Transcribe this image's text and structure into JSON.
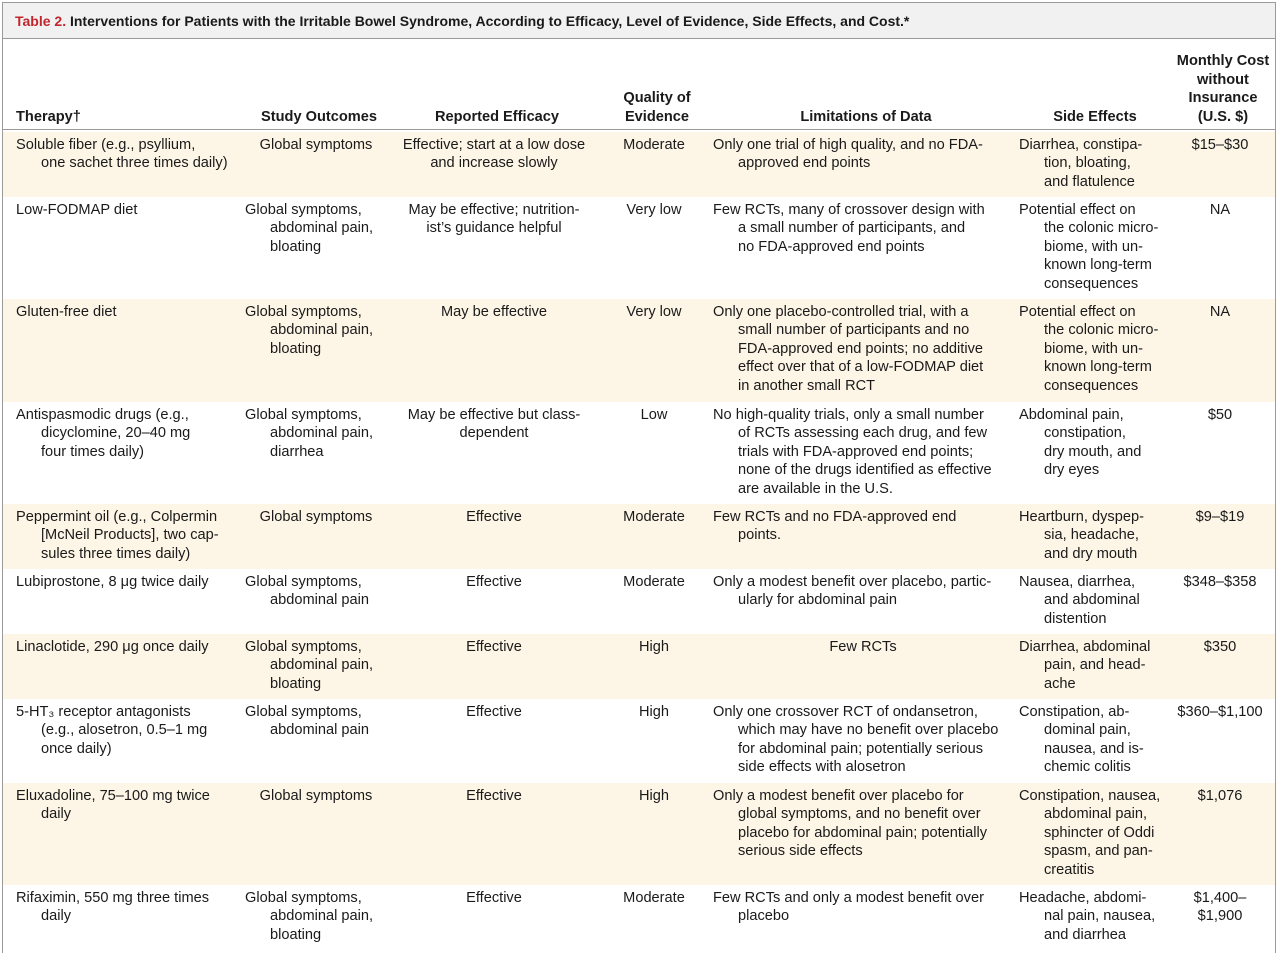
{
  "title": {
    "label": "Table 2.",
    "text": "Interventions for Patients with the Irritable Bowel Syndrome, According to Efficacy, Level of Evidence, Side Effects, and Cost.*"
  },
  "table": {
    "headers": [
      "Therapy†",
      "Study Outcomes",
      "Reported Efficacy",
      "Quality of\nEvidence",
      "Limitations of Data",
      "Side Effects",
      "Monthly Cost\nwithout\nInsurance\n(U.S. $)"
    ],
    "rows": [
      [
        "Soluble fiber (e.g., psyllium,\none sachet three times daily)",
        "Global symptoms",
        "Effective; start at a low dose\nand increase slowly",
        "Moderate",
        "Only one trial of high quality, and no FDA-\napproved end points",
        "Diarrhea, constipa-\ntion, bloating,\nand flatulence",
        "$15–$30"
      ],
      [
        "Low-FODMAP diet",
        "Global symptoms,\nabdominal pain,\nbloating",
        "May be effective; nutrition-\nist’s guidance helpful",
        "Very low",
        "Few RCTs, many of crossover design with\na small number of participants, and\nno FDA-approved end points",
        "Potential effect on\nthe colonic micro-\nbiome, with un-\nknown long-term\nconsequences",
        "NA"
      ],
      [
        "Gluten-free diet",
        "Global symptoms,\nabdominal pain,\nbloating",
        "May be effective",
        "Very low",
        "Only one placebo-controlled trial, with a\nsmall number of participants and no\nFDA-approved end points; no additive\neffect over that of a low-FODMAP diet\nin another small RCT",
        "Potential effect on\nthe colonic micro-\nbiome, with un-\nknown long-term\nconsequences",
        "NA"
      ],
      [
        "Antispasmodic drugs (e.g.,\ndicyclomine, 20–40 mg\nfour times daily)",
        "Global symptoms,\nabdominal pain,\ndiarrhea",
        "May be effective but class-\ndependent",
        "Low",
        "No high-quality trials, only a small number\nof RCTs assessing each drug, and few\ntrials with FDA-approved end points;\nnone of the drugs identified as effective\nare available in the U.S.",
        "Abdominal pain,\nconstipation,\ndry mouth, and\ndry eyes",
        "$50"
      ],
      [
        "Peppermint oil (e.g., Colpermin\n[McNeil Products], two cap-\nsules three times daily)",
        "Global symptoms",
        "Effective",
        "Moderate",
        "Few RCTs and no FDA-approved end\npoints.",
        "Heartburn, dyspep-\nsia, headache,\nand dry mouth",
        "$9–$19"
      ],
      [
        "Lubiprostone, 8 μg twice daily",
        "Global symptoms,\nabdominal pain",
        "Effective",
        "Moderate",
        "Only a modest benefit over placebo, partic-\nularly for abdominal pain",
        "Nausea, diarrhea,\nand abdominal\ndistention",
        "$348–$358"
      ],
      [
        "Linaclotide, 290 μg once daily",
        "Global symptoms,\nabdominal pain,\nbloating",
        "Effective",
        "High",
        "Few RCTs",
        "Diarrhea, abdominal\npain, and head-\nache",
        "$350"
      ],
      [
        "5-HT₃ receptor antagonists\n(e.g., alosetron, 0.5–1 mg\nonce daily)",
        "Global symptoms,\nabdominal pain",
        "Effective",
        "High",
        "Only one crossover RCT of ondansetron,\nwhich may have no benefit over placebo\nfor abdominal pain; potentially serious\nside effects with alosetron",
        "Constipation, ab-\ndominal pain,\nnausea, and is-\nchemic colitis",
        "$360–$1,100"
      ],
      [
        "Eluxadoline, 75–100 mg twice\ndaily",
        "Global symptoms",
        "Effective",
        "High",
        "Only a modest benefit over placebo for\nglobal symptoms, and no benefit over\nplacebo for abdominal pain; potentially\nserious side effects",
        "Constipation, nausea,\nabdominal pain,\nsphincter of Oddi\nspasm, and pan-\ncreatitis",
        "$1,076"
      ],
      [
        "Rifaximin, 550 mg three times\ndaily",
        "Global symptoms,\nabdominal pain,\nbloating",
        "Effective",
        "Moderate",
        "Few RCTs and only a modest benefit over\nplacebo",
        "Headache, abdomi-\nnal pain, nausea,\nand diarrhea",
        "$1,400–\n$1,900"
      ]
    ]
  }
}
